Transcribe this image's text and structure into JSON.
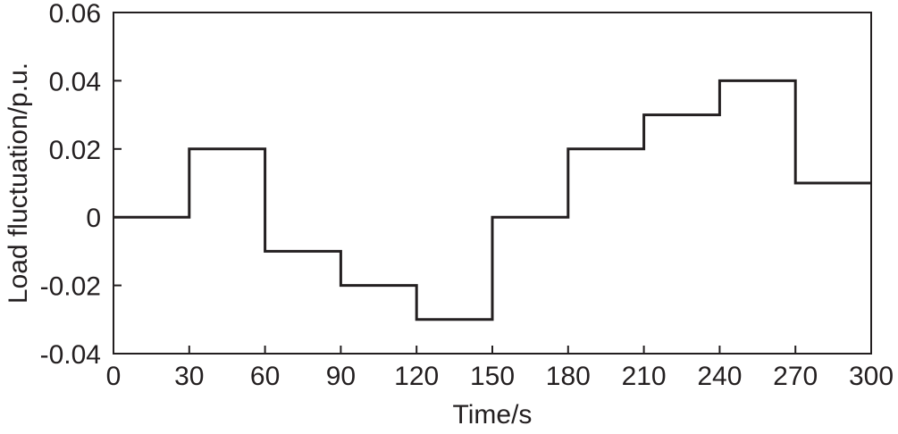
{
  "chart_data": {
    "type": "line",
    "step": true,
    "title": "",
    "xlabel": "Time/s",
    "ylabel": "Load fluctuation/p.u.",
    "xlim": [
      0,
      300
    ],
    "ylim": [
      -0.04,
      0.06
    ],
    "x_ticks": [
      0,
      30,
      60,
      90,
      120,
      150,
      180,
      210,
      240,
      270,
      300
    ],
    "x_tick_labels": [
      "0",
      "30",
      "60",
      "90",
      "120",
      "150",
      "180",
      "210",
      "240",
      "270",
      "300"
    ],
    "y_ticks": [
      -0.04,
      -0.02,
      0,
      0.02,
      0.04,
      0.06
    ],
    "y_tick_labels": [
      "-0.04",
      "-0.02",
      "0",
      "0.02",
      "0.04",
      "0.06"
    ],
    "grid": false,
    "line_color": "#231f20",
    "series": [
      {
        "x": [
          0,
          30,
          30,
          60,
          60,
          90,
          90,
          120,
          120,
          150,
          150,
          180,
          180,
          210,
          210,
          240,
          240,
          270,
          270,
          300
        ],
        "y": [
          0,
          0,
          0.02,
          0.02,
          -0.01,
          -0.01,
          -0.02,
          -0.02,
          -0.03,
          -0.03,
          0,
          0,
          0.02,
          0.02,
          0.03,
          0.03,
          0.04,
          0.04,
          0.01,
          0.01
        ]
      }
    ]
  }
}
